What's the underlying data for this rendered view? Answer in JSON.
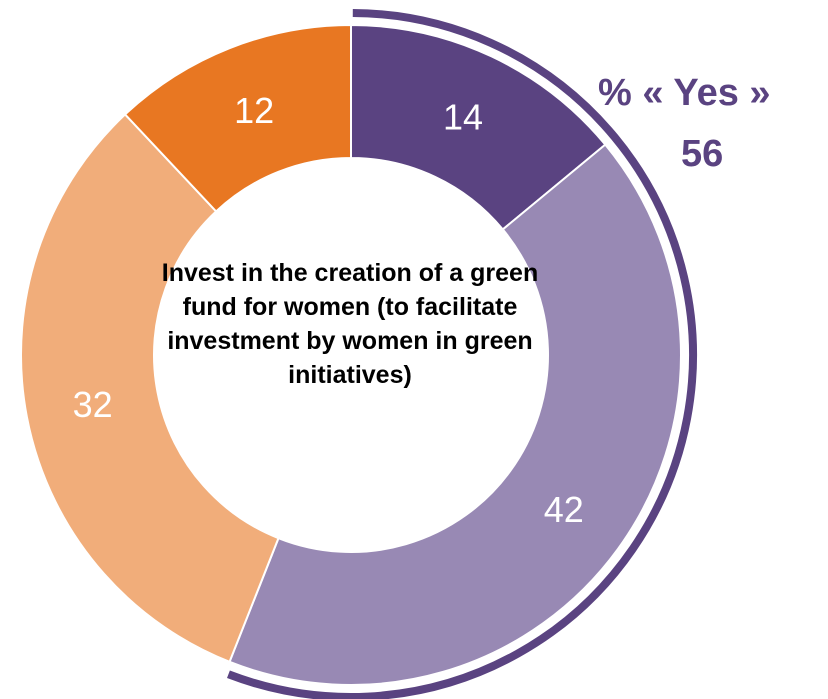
{
  "chart_data": {
    "type": "pie",
    "variant": "donut",
    "title": "Invest in the creation of a green fund for women (to facilitate investment by women in green initiatives)",
    "slices": [
      {
        "value": 14,
        "label": "14",
        "color": "#5a4381"
      },
      {
        "value": 42,
        "label": "42",
        "color": "#9889b4"
      },
      {
        "value": 32,
        "label": "32",
        "color": "#f1ad7a"
      },
      {
        "value": 12,
        "label": "12",
        "color": "#e87722"
      }
    ],
    "annotation": {
      "label": "% « Yes »",
      "value": "56",
      "color": "#5a4381",
      "spans_slices": [
        0,
        1
      ]
    }
  }
}
